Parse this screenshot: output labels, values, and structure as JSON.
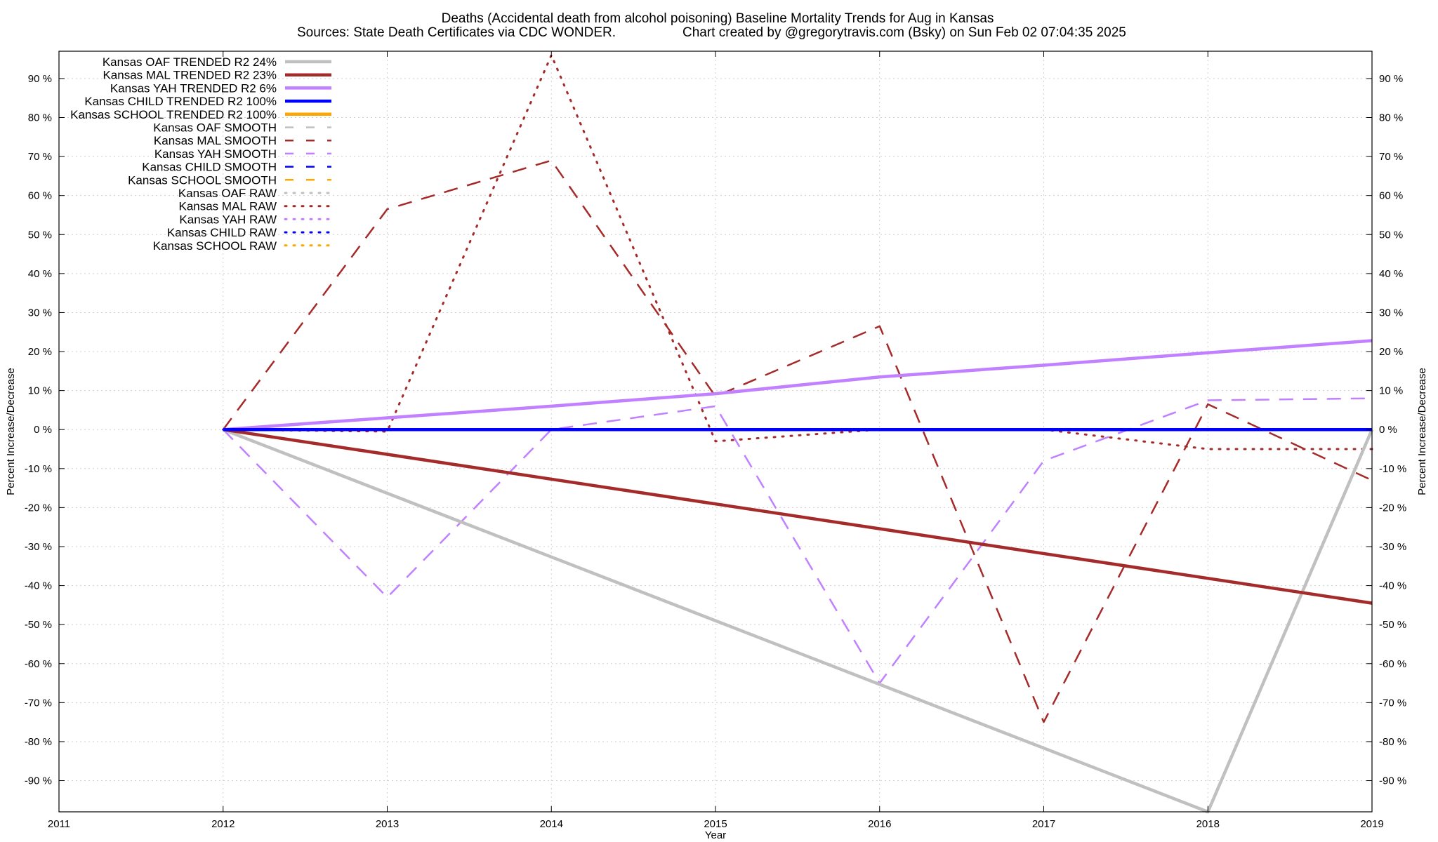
{
  "chart_data": {
    "type": "line",
    "title": "Deaths (Accidental death from alcohol poisoning)  Baseline Mortality Trends for Aug in Kansas",
    "subtitle_left": "Sources: State Death Certificates via CDC WONDER.",
    "subtitle_right": "Chart created by @gregorytravis.com (Bsky) on Sun Feb 02 07:04:35 2025",
    "xlabel": "Year",
    "ylabel_left": "Percent Increase/Decrease",
    "ylabel_right": "Percent Increase/Decrease",
    "xlim": [
      2011,
      2019
    ],
    "ylim": [
      -98,
      97
    ],
    "x_ticks": [
      "2011",
      "2012",
      "2013",
      "2014",
      "2015",
      "2016",
      "2017",
      "2018",
      "2019"
    ],
    "y_ticks": [
      -90,
      -80,
      -70,
      -60,
      -50,
      -40,
      -30,
      -20,
      -10,
      0,
      10,
      20,
      30,
      40,
      50,
      60,
      70,
      80,
      90
    ],
    "y_tick_suffix": " %",
    "grid": true,
    "legend_position": "top-left",
    "series": [
      {
        "name": "Kansas OAF TRENDED R2  24%",
        "style": "trend",
        "color": "#c0c0c0",
        "points": [
          [
            2012,
            0
          ],
          [
            2018,
            -98
          ],
          [
            2019,
            0
          ]
        ]
      },
      {
        "name": "Kansas MAL TRENDED R2  23%",
        "style": "trend",
        "color": "#a52a2a",
        "points": [
          [
            2012,
            0
          ],
          [
            2019,
            -44.5
          ]
        ]
      },
      {
        "name": "Kansas YAH TRENDED R2   6%",
        "style": "trend",
        "color": "#c080ff",
        "points": [
          [
            2012,
            0
          ],
          [
            2013,
            3
          ],
          [
            2014,
            6
          ],
          [
            2015,
            9.2
          ],
          [
            2016,
            13.5
          ],
          [
            2017,
            16.5
          ],
          [
            2018,
            19.7
          ],
          [
            2019,
            22.8
          ]
        ]
      },
      {
        "name": "Kansas CHILD TRENDED R2 100%",
        "style": "trend",
        "color": "#0000ff",
        "points": [
          [
            2012,
            0
          ],
          [
            2019,
            0
          ]
        ]
      },
      {
        "name": "Kansas SCHOOL TRENDED R2 100%",
        "style": "trend",
        "color": "#ffa500",
        "points": []
      },
      {
        "name": "Kansas OAF SMOOTH",
        "style": "smooth",
        "color": "#c0c0c0",
        "points": []
      },
      {
        "name": "Kansas MAL SMOOTH",
        "style": "smooth",
        "color": "#a52a2a",
        "points": [
          [
            2012,
            0
          ],
          [
            2013,
            56.5
          ],
          [
            2014,
            69
          ],
          [
            2015,
            8.5
          ],
          [
            2016,
            26.5
          ],
          [
            2017,
            -75
          ],
          [
            2018,
            6.5
          ],
          [
            2019,
            -13
          ]
        ]
      },
      {
        "name": "Kansas YAH SMOOTH",
        "style": "smooth",
        "color": "#c080ff",
        "points": [
          [
            2012,
            0
          ],
          [
            2013,
            -43
          ],
          [
            2014,
            0
          ],
          [
            2015,
            6
          ],
          [
            2016,
            -65
          ],
          [
            2017,
            -8
          ],
          [
            2018,
            7.5
          ],
          [
            2019,
            8
          ]
        ]
      },
      {
        "name": "Kansas CHILD SMOOTH",
        "style": "smooth",
        "color": "#0000ff",
        "points": [
          [
            2012,
            0
          ],
          [
            2019,
            0
          ]
        ]
      },
      {
        "name": "Kansas SCHOOL SMOOTH",
        "style": "smooth",
        "color": "#ffa500",
        "points": []
      },
      {
        "name": "Kansas OAF RAW",
        "style": "raw",
        "color": "#c0c0c0",
        "points": []
      },
      {
        "name": "Kansas MAL RAW",
        "style": "raw",
        "color": "#a52a2a",
        "points": [
          [
            2012,
            0
          ],
          [
            2013,
            -0.5
          ],
          [
            2014,
            96
          ],
          [
            2015,
            -3
          ],
          [
            2016,
            0
          ],
          [
            2017,
            0
          ],
          [
            2018,
            -5
          ],
          [
            2019,
            -5
          ]
        ]
      },
      {
        "name": "Kansas YAH RAW",
        "style": "raw",
        "color": "#c080ff",
        "points": []
      },
      {
        "name": "Kansas CHILD RAW",
        "style": "raw",
        "color": "#0000ff",
        "points": [
          [
            2012,
            0
          ],
          [
            2019,
            0
          ]
        ]
      },
      {
        "name": "Kansas SCHOOL RAW",
        "style": "raw",
        "color": "#ffa500",
        "points": []
      }
    ]
  }
}
